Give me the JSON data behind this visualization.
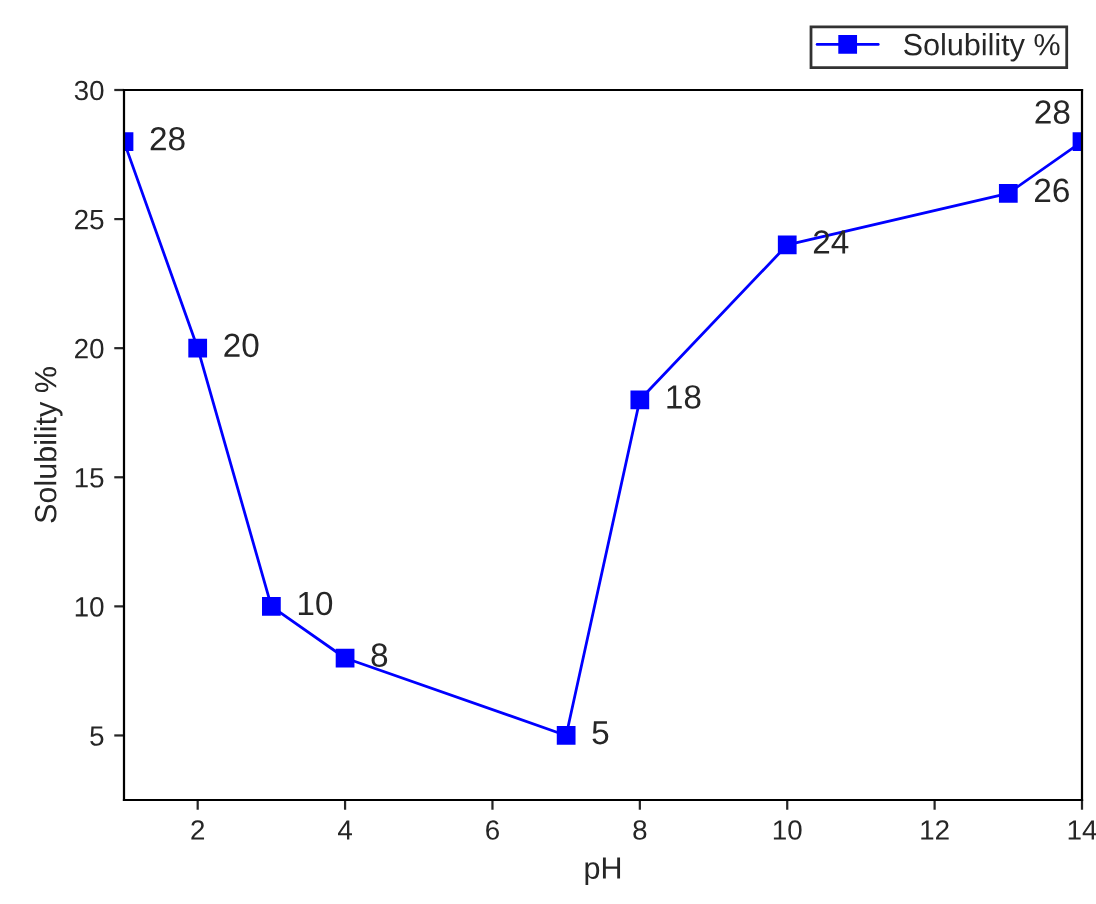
{
  "chart_data": {
    "type": "line",
    "xlabel": "pH",
    "ylabel": "Solubility %",
    "x": [
      1,
      2,
      3,
      4,
      7,
      8,
      10,
      13,
      14
    ],
    "series": [
      {
        "name": "Solubility %",
        "color": "#0000ff",
        "values": [
          28,
          20,
          10,
          8,
          5,
          18,
          24,
          26,
          28
        ]
      }
    ],
    "xlim": [
      1,
      14
    ],
    "xticks": [
      2,
      4,
      6,
      8,
      10,
      12,
      14
    ],
    "ylim": [
      2.5,
      30
    ],
    "yticks": [
      5,
      10,
      15,
      20,
      25,
      30
    ],
    "marker": "square",
    "line_style": "solid",
    "data_labels": true,
    "grid": false,
    "legend": "top right"
  }
}
